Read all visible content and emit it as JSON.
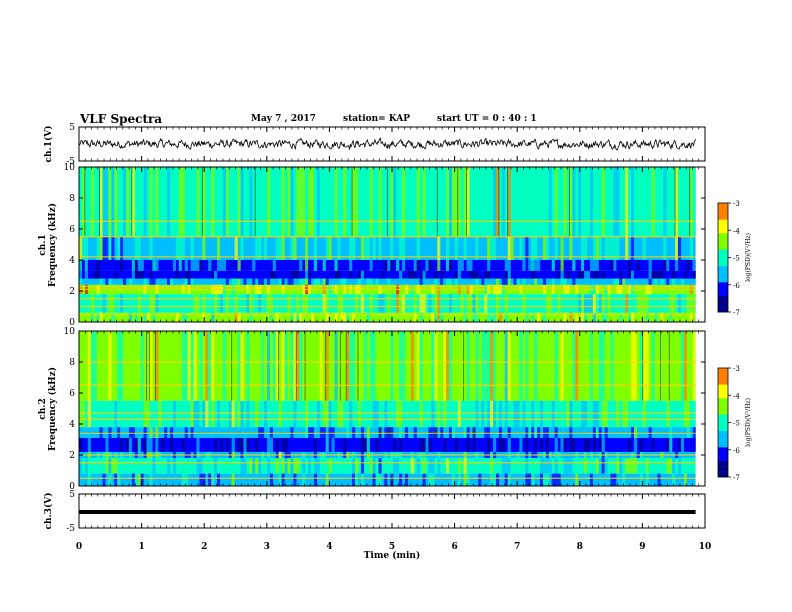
{
  "header": {
    "title": "VLF Spectra",
    "date": "May 7 , 2017",
    "station": "station= KAP",
    "start": "start UT = 0 : 40 : 1"
  },
  "colors": {
    "colormap": [
      "#00008b",
      "#0000ff",
      "#00bfff",
      "#00ffc0",
      "#7fff00",
      "#ffff00",
      "#ff8000",
      "#ff0000",
      "#ffffff"
    ],
    "trace": "#000000"
  },
  "chart_data": [
    {
      "type": "line",
      "name": "ch1-waveform",
      "ylabel": "ch.1(V)",
      "ylim": [
        -5,
        5
      ],
      "yticks": [
        "5",
        "-5"
      ],
      "xlim": [
        0,
        10
      ],
      "note_series": "noise trace centred near 0 V, amplitude about ±1.5 V",
      "y_center": 0,
      "y_amplitude": 1.5
    },
    {
      "type": "heatmap",
      "name": "ch1-spectrogram",
      "ylabel": "ch.1\nFrequency (kHz)",
      "ylim": [
        0,
        10
      ],
      "yticks": [
        "0",
        "2",
        "4",
        "6",
        "8",
        "10"
      ],
      "xlim": [
        0,
        10
      ],
      "colorbar": {
        "label": "log(PSD)(V²/Hz)",
        "range": [
          -7,
          -3
        ],
        "ticks": [
          "-3",
          "-4",
          "-5",
          "-6",
          "-7"
        ]
      },
      "bands_khz": [
        {
          "from": 0,
          "to": 0.6,
          "level": -4.6
        },
        {
          "from": 0.6,
          "to": 1.8,
          "level": -4.8
        },
        {
          "from": 1.8,
          "to": 2.4,
          "level": -4.3
        },
        {
          "from": 2.4,
          "to": 2.8,
          "level": -5.6
        },
        {
          "from": 2.8,
          "to": 3.3,
          "level": -6.4
        },
        {
          "from": 3.3,
          "to": 4.0,
          "level": -5.9
        },
        {
          "from": 4.0,
          "to": 5.5,
          "level": -5.3
        },
        {
          "from": 5.5,
          "to": 10,
          "level": -4.9
        }
      ],
      "tone_lines_khz": [
        0.5,
        1.0,
        1.5,
        2.1,
        2.3,
        4.2,
        5.5,
        6.5
      ]
    },
    {
      "type": "heatmap",
      "name": "ch2-spectrogram",
      "ylabel": "ch.2\nFrequency (kHz)",
      "ylim": [
        0,
        10
      ],
      "yticks": [
        "0",
        "2",
        "4",
        "6",
        "8",
        "10"
      ],
      "xlim": [
        0,
        10
      ],
      "colorbar": {
        "label": "log(PSD)(V²/Hz)",
        "range": [
          -7,
          -3
        ],
        "ticks": [
          "-3",
          "-4",
          "-5",
          "-6",
          "-7"
        ]
      },
      "bands_khz": [
        {
          "from": 0,
          "to": 0.8,
          "level": -5.7
        },
        {
          "from": 0.8,
          "to": 1.8,
          "level": -5.2
        },
        {
          "from": 1.8,
          "to": 2.2,
          "level": -5.5
        },
        {
          "from": 2.2,
          "to": 3.1,
          "level": -6.4
        },
        {
          "from": 3.1,
          "to": 3.8,
          "level": -5.8
        },
        {
          "from": 3.8,
          "to": 5.5,
          "level": -5.1
        },
        {
          "from": 5.5,
          "to": 10,
          "level": -4.6
        }
      ],
      "tone_lines_khz": [
        0.5,
        1.5,
        2.0,
        3.4,
        4.3,
        4.7,
        6.5,
        8.0
      ]
    },
    {
      "type": "line",
      "name": "ch3-waveform",
      "ylabel": "ch.3(V)",
      "ylim": [
        -5,
        5
      ],
      "yticks": [
        "5",
        "-5"
      ],
      "xlim": [
        0,
        10
      ],
      "y_value": -0.3
    }
  ],
  "xaxis": {
    "label": "Time (min)",
    "ticks": [
      "0",
      "1",
      "2",
      "3",
      "4",
      "5",
      "6",
      "7",
      "8",
      "9",
      "10"
    ],
    "data_end_min": 9.85
  }
}
